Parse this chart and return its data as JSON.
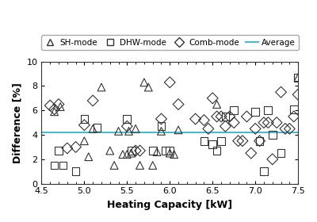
{
  "sh_mode": {
    "x": [
      4.65,
      4.72,
      5.0,
      5.05,
      5.1,
      5.2,
      5.3,
      5.35,
      5.4,
      5.45,
      5.5,
      5.52,
      5.55,
      5.6,
      5.65,
      5.7,
      5.75,
      5.8,
      5.85,
      5.9,
      6.0,
      6.05,
      6.1,
      6.55,
      7.5
    ],
    "y": [
      5.9,
      6.3,
      3.5,
      2.2,
      4.5,
      7.9,
      2.7,
      1.5,
      4.3,
      2.4,
      2.4,
      4.3,
      2.5,
      4.5,
      1.5,
      8.3,
      7.9,
      1.5,
      2.6,
      4.3,
      2.5,
      2.4,
      4.4,
      6.5,
      8.7
    ]
  },
  "dhw_mode": {
    "x": [
      4.65,
      4.7,
      4.75,
      4.9,
      5.0,
      5.15,
      5.5,
      5.55,
      5.8,
      5.9,
      5.95,
      6.0,
      6.4,
      6.5,
      6.55,
      6.6,
      6.65,
      6.75,
      7.0,
      7.05,
      7.1,
      7.15,
      7.2,
      7.3,
      7.45,
      7.5
    ],
    "y": [
      1.5,
      2.7,
      1.5,
      1.0,
      5.3,
      4.6,
      5.3,
      2.7,
      2.7,
      4.7,
      2.7,
      2.7,
      3.5,
      3.2,
      2.7,
      3.5,
      5.5,
      6.0,
      5.9,
      3.5,
      1.0,
      6.0,
      4.0,
      2.5,
      6.1,
      8.7
    ]
  },
  "comb_mode": {
    "x": [
      4.6,
      4.65,
      4.7,
      4.8,
      4.9,
      5.0,
      5.1,
      5.5,
      5.6,
      5.65,
      5.9,
      6.0,
      6.1,
      6.3,
      6.4,
      6.45,
      6.5,
      6.55,
      6.6,
      6.65,
      6.7,
      6.75,
      6.8,
      6.85,
      6.9,
      6.95,
      7.0,
      7.05,
      7.1,
      7.15,
      7.2,
      7.25,
      7.3,
      7.35,
      7.4,
      7.45,
      7.5
    ],
    "y": [
      6.4,
      6.1,
      6.5,
      2.9,
      3.0,
      4.8,
      6.8,
      4.7,
      2.7,
      2.7,
      5.3,
      8.3,
      6.5,
      5.3,
      5.2,
      4.5,
      7.0,
      5.5,
      5.5,
      4.7,
      5.5,
      5.0,
      3.5,
      3.5,
      5.5,
      2.5,
      4.5,
      3.5,
      5.0,
      5.0,
      2.0,
      5.0,
      7.5,
      4.5,
      4.5,
      5.5,
      7.3
    ]
  },
  "average_y": 4.2,
  "xlim": [
    4.5,
    7.5
  ],
  "ylim": [
    0,
    10
  ],
  "xlabel": "Heating Capacity [kW]",
  "ylabel": "Difference [%]",
  "xticks": [
    4.5,
    5.0,
    5.5,
    6.0,
    6.5,
    7.0,
    7.5
  ],
  "yticks": [
    0,
    2,
    4,
    6,
    8,
    10
  ],
  "legend_labels": [
    "SH-mode",
    "DHW-mode",
    "Comb-mode",
    "Average"
  ],
  "marker_size": 7,
  "average_color": "#4db8c8",
  "line_color": "#333333",
  "background": "#ffffff"
}
